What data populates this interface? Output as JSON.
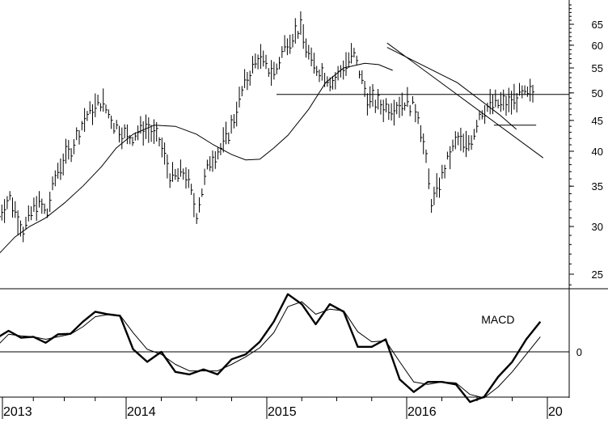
{
  "chart_data": [
    {
      "type": "bar",
      "subtype": "ohlc-high-low",
      "scale": "log",
      "ylim": [
        22,
        75
      ],
      "grid": false,
      "yticks": [
        25,
        30,
        35,
        40,
        45,
        50,
        55,
        60,
        65
      ],
      "xticks": [
        {
          "label": "2013",
          "year": 2013.0
        },
        {
          "label": "2014",
          "year": 2014.0
        },
        {
          "label": "2015",
          "year": 2015.0
        },
        {
          "label": "2016",
          "year": 2016.0
        },
        {
          "label": "20",
          "year": 2017.0
        }
      ],
      "xlim": [
        2012.97,
        2017.0
      ],
      "series": [
        {
          "style": "price-bars",
          "x": [
            2012.97,
            2013.06,
            2013.17,
            2013.28,
            2013.36,
            2013.44,
            2013.56,
            2013.67,
            2013.8,
            2013.9,
            2014.02,
            2014.14,
            2014.24,
            2014.32,
            2014.42,
            2014.5,
            2014.6,
            2014.68,
            2014.75,
            2014.84,
            2014.94,
            2015.0,
            2015.06,
            2015.14,
            2015.24,
            2015.32,
            2015.4,
            2015.48,
            2015.54,
            2015.62,
            2015.72,
            2015.82,
            2015.9,
            2016.0,
            2016.08,
            2016.18,
            2016.28,
            2016.36,
            2016.42,
            2016.47,
            2016.52,
            2016.62,
            2016.72,
            2016.8,
            2016.86,
            2016.9
          ],
          "values": [
            31.5,
            33.5,
            29.5,
            33,
            31.5,
            37,
            40.5,
            45.5,
            48.5,
            44.5,
            42,
            44,
            41.5,
            36,
            37,
            31.5,
            39,
            40.5,
            44,
            51.5,
            57.5,
            55,
            54,
            61,
            64,
            56,
            54,
            52,
            55,
            58,
            49,
            47.5,
            47.5,
            48.5,
            46.5,
            32.5,
            38,
            42,
            40.5,
            42.5,
            46.5,
            48,
            48,
            49.5,
            49.5,
            50
          ]
        },
        {
          "style": "moving-average",
          "x": [
            2012.97,
            2013.1,
            2013.22,
            2013.35,
            2013.5,
            2013.65,
            2013.8,
            2013.92,
            2014.05,
            2014.2,
            2014.35,
            2014.5,
            2014.62,
            2014.75,
            2014.85,
            2014.95,
            2015.05,
            2015.15,
            2015.3,
            2015.42,
            2015.55,
            2015.7,
            2015.8,
            2015.9
          ],
          "values": [
            27,
            28.8,
            30,
            31,
            32.8,
            35,
            37.7,
            40.5,
            42.7,
            44.2,
            44,
            42.7,
            41,
            39.5,
            38.7,
            38.8,
            40.5,
            42.5,
            47,
            52,
            55,
            56,
            55.7,
            54.5
          ]
        },
        {
          "style": "trendline",
          "x": [
            2015.86,
            2016.97
          ],
          "values": [
            60.5,
            39
          ]
        },
        {
          "style": "trendline-inner",
          "x": [
            2015.86,
            2016.36,
            2016.66,
            2016.78
          ],
          "values": [
            59.5,
            52,
            46,
            43.5
          ]
        },
        {
          "style": "horizontal-line",
          "x": [
            2015.0,
            2017.0
          ],
          "values": [
            49.7,
            49.7
          ]
        },
        {
          "style": "level-mark",
          "x": [
            2016.62,
            2016.92
          ],
          "values": [
            44.2,
            44.2
          ]
        }
      ]
    },
    {
      "type": "line",
      "ylim": [
        -1.0,
        1.2
      ],
      "yticks": [
        0
      ],
      "grid": false,
      "annotations": [
        {
          "text": "MACD",
          "x": 2016.53,
          "y": 0.6
        }
      ],
      "x": [
        2012.97,
        2013.05,
        2013.15,
        2013.25,
        2013.35,
        2013.45,
        2013.55,
        2013.65,
        2013.75,
        2013.85,
        2013.95,
        2014.05,
        2014.15,
        2014.25,
        2014.35,
        2014.45,
        2014.55,
        2014.65,
        2014.75,
        2014.85,
        2014.95,
        2015.05,
        2015.15,
        2015.25,
        2015.35,
        2015.45,
        2015.55,
        2015.65,
        2015.75,
        2015.85,
        2015.95,
        2016.05,
        2016.15,
        2016.25,
        2016.35,
        2016.45,
        2016.55,
        2016.65,
        2016.75,
        2016.85,
        2016.95
      ],
      "series": [
        {
          "style": "macd-thick",
          "values": [
            0.3,
            0.42,
            0.28,
            0.3,
            0.18,
            0.35,
            0.36,
            0.6,
            0.8,
            0.75,
            0.72,
            0.05,
            -0.2,
            0.0,
            -0.4,
            -0.45,
            -0.35,
            -0.45,
            -0.15,
            -0.05,
            0.2,
            0.6,
            1.15,
            0.95,
            0.55,
            0.95,
            0.8,
            0.1,
            0.1,
            0.25,
            -0.55,
            -0.8,
            -0.6,
            -0.6,
            -0.65,
            -1.0,
            -0.9,
            -0.5,
            -0.2,
            0.25,
            0.6
          ]
        },
        {
          "style": "macd-signal",
          "values": [
            0.15,
            0.35,
            0.32,
            0.3,
            0.25,
            0.3,
            0.35,
            0.5,
            0.7,
            0.74,
            0.73,
            0.38,
            0.05,
            -0.05,
            -0.25,
            -0.38,
            -0.38,
            -0.38,
            -0.25,
            -0.1,
            0.08,
            0.38,
            0.9,
            1.0,
            0.75,
            0.85,
            0.82,
            0.4,
            0.2,
            0.22,
            -0.2,
            -0.6,
            -0.65,
            -0.6,
            -0.62,
            -0.85,
            -0.92,
            -0.7,
            -0.4,
            -0.05,
            0.3
          ]
        }
      ]
    }
  ]
}
